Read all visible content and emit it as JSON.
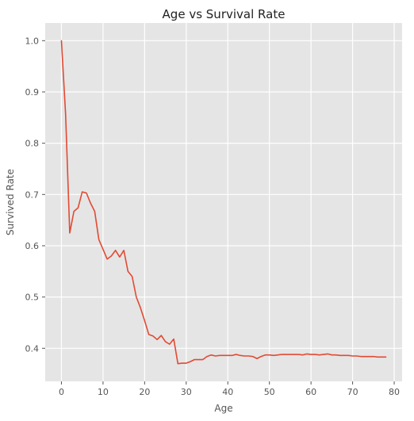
{
  "chart_data": {
    "type": "line",
    "title": "Age vs Survival Rate",
    "xlabel": "Age",
    "ylabel": "Survived Rate",
    "xlim": [
      -3.9,
      81.9
    ],
    "ylim": [
      0.3355,
      1.0345
    ],
    "xticks": [
      0,
      10,
      20,
      30,
      40,
      50,
      60,
      70,
      80
    ],
    "yticks": [
      0.4,
      0.5,
      0.6,
      0.7,
      0.8,
      0.9,
      1.0
    ],
    "grid": true,
    "colors": {
      "background": "#e5e5e5",
      "grid": "#ffffff",
      "line": "#e24a33"
    },
    "series": [
      {
        "x": [
          0,
          1,
          2,
          3,
          4,
          5,
          6,
          7,
          8,
          9,
          10,
          11,
          12,
          13,
          14,
          15,
          16,
          17,
          18,
          19,
          20,
          21,
          22,
          23,
          24,
          25,
          26,
          27,
          28,
          29,
          30,
          31,
          32,
          33,
          34,
          35,
          36,
          37,
          38,
          39,
          40,
          41,
          42,
          43,
          44,
          45,
          46,
          47,
          48,
          49,
          50,
          51,
          52,
          53,
          54,
          55,
          56,
          57,
          58,
          59,
          60,
          61,
          62,
          63,
          64,
          65,
          66,
          67,
          68,
          69,
          70,
          71,
          72,
          73,
          74,
          75,
          76,
          77,
          78
        ],
        "values": [
          1.0,
          0.857,
          0.625,
          0.667,
          0.674,
          0.705,
          0.703,
          0.683,
          0.667,
          0.612,
          0.593,
          0.574,
          0.58,
          0.591,
          0.578,
          0.591,
          0.55,
          0.54,
          0.5,
          0.479,
          0.454,
          0.427,
          0.424,
          0.417,
          0.425,
          0.413,
          0.408,
          0.418,
          0.37,
          0.371,
          0.371,
          0.374,
          0.378,
          0.378,
          0.378,
          0.384,
          0.387,
          0.385,
          0.386,
          0.386,
          0.386,
          0.386,
          0.388,
          0.386,
          0.385,
          0.385,
          0.384,
          0.38,
          0.384,
          0.387,
          0.387,
          0.386,
          0.387,
          0.388,
          0.388,
          0.388,
          0.388,
          0.388,
          0.387,
          0.389,
          0.388,
          0.388,
          0.387,
          0.388,
          0.389,
          0.387,
          0.387,
          0.386,
          0.386,
          0.386,
          0.385,
          0.385,
          0.384,
          0.384,
          0.384,
          0.384,
          0.383,
          0.383,
          0.383
        ]
      }
    ]
  }
}
